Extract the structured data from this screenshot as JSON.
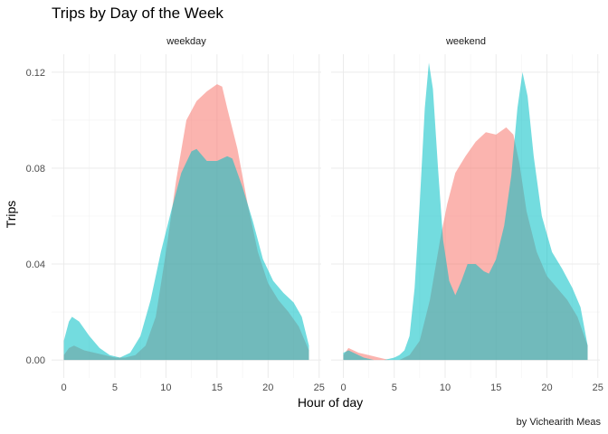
{
  "chart_data": {
    "type": "area",
    "subtype": "density",
    "title": "Trips by Day of the Week",
    "xlabel": "Hour of day",
    "ylabel": "Trips",
    "caption": "by Vichearith Meas",
    "xlim": [
      0,
      25
    ],
    "ylim": [
      0,
      0.12
    ],
    "x_ticks": [
      0,
      5,
      10,
      15,
      20,
      25
    ],
    "y_ticks": [
      0.0,
      0.04,
      0.08,
      0.12
    ],
    "y_tick_labels": [
      "0.00",
      "0.04",
      "0.08",
      "0.12"
    ],
    "grid": true,
    "legend": "none",
    "colors": {
      "series_a": "#f8766d",
      "series_b": "#00bfc4"
    },
    "fill_opacity": 0.55,
    "panels": [
      {
        "label": "weekday",
        "series": [
          {
            "color": "#f8766d",
            "points": [
              [
                0,
                0.002
              ],
              [
                0.5,
                0.005
              ],
              [
                1,
                0.006
              ],
              [
                1.5,
                0.005
              ],
              [
                2,
                0.004
              ],
              [
                3,
                0.003
              ],
              [
                4,
                0.002
              ],
              [
                5,
                0.001
              ],
              [
                6,
                0.001
              ],
              [
                7,
                0.002
              ],
              [
                8,
                0.006
              ],
              [
                9,
                0.018
              ],
              [
                10,
                0.045
              ],
              [
                11,
                0.075
              ],
              [
                12,
                0.1
              ],
              [
                13,
                0.108
              ],
              [
                14,
                0.112
              ],
              [
                15,
                0.115
              ],
              [
                15.5,
                0.114
              ],
              [
                16,
                0.105
              ],
              [
                17,
                0.088
              ],
              [
                18,
                0.065
              ],
              [
                19,
                0.045
              ],
              [
                20,
                0.032
              ],
              [
                21,
                0.025
              ],
              [
                22,
                0.02
              ],
              [
                23,
                0.014
              ],
              [
                24,
                0.004
              ]
            ]
          },
          {
            "color": "#00bfc4",
            "points": [
              [
                0,
                0.008
              ],
              [
                0.5,
                0.016
              ],
              [
                0.8,
                0.018
              ],
              [
                1.5,
                0.016
              ],
              [
                2.5,
                0.01
              ],
              [
                3.5,
                0.005
              ],
              [
                4.5,
                0.002
              ],
              [
                5.5,
                0.001
              ],
              [
                6.5,
                0.003
              ],
              [
                7.5,
                0.01
              ],
              [
                8.5,
                0.025
              ],
              [
                9.5,
                0.045
              ],
              [
                10.5,
                0.062
              ],
              [
                11.5,
                0.078
              ],
              [
                12.5,
                0.087
              ],
              [
                13,
                0.088
              ],
              [
                14,
                0.083
              ],
              [
                15,
                0.083
              ],
              [
                16,
                0.085
              ],
              [
                16.5,
                0.084
              ],
              [
                17.5,
                0.072
              ],
              [
                18.5,
                0.058
              ],
              [
                19.5,
                0.042
              ],
              [
                20.5,
                0.033
              ],
              [
                21.5,
                0.028
              ],
              [
                22.5,
                0.024
              ],
              [
                23.3,
                0.018
              ],
              [
                24,
                0.006
              ]
            ]
          }
        ]
      },
      {
        "label": "weekend",
        "series": [
          {
            "color": "#f8766d",
            "points": [
              [
                0,
                0.002
              ],
              [
                0.5,
                0.005
              ],
              [
                1,
                0.004
              ],
              [
                1.5,
                0.003
              ],
              [
                2.5,
                0.002
              ],
              [
                3.5,
                0.001
              ],
              [
                4.5,
                0
              ],
              [
                5.5,
                0
              ],
              [
                6.5,
                0.002
              ],
              [
                7.5,
                0.008
              ],
              [
                8.5,
                0.025
              ],
              [
                9.5,
                0.05
              ],
              [
                10.2,
                0.065
              ],
              [
                11,
                0.078
              ],
              [
                12,
                0.085
              ],
              [
                13,
                0.091
              ],
              [
                14,
                0.095
              ],
              [
                15,
                0.094
              ],
              [
                16,
                0.097
              ],
              [
                16.7,
                0.094
              ],
              [
                17.3,
                0.082
              ],
              [
                18,
                0.062
              ],
              [
                19,
                0.045
              ],
              [
                20,
                0.035
              ],
              [
                21,
                0.03
              ],
              [
                22,
                0.025
              ],
              [
                23,
                0.018
              ],
              [
                24,
                0.006
              ]
            ]
          },
          {
            "color": "#00bfc4",
            "points": [
              [
                0,
                0.003
              ],
              [
                0.5,
                0.004
              ],
              [
                1,
                0.003
              ],
              [
                2,
                0.001
              ],
              [
                3,
                0
              ],
              [
                4,
                0
              ],
              [
                5,
                0.001
              ],
              [
                5.5,
                0.002
              ],
              [
                6,
                0.004
              ],
              [
                6.5,
                0.01
              ],
              [
                7,
                0.03
              ],
              [
                7.5,
                0.065
              ],
              [
                8,
                0.105
              ],
              [
                8.4,
                0.124
              ],
              [
                8.8,
                0.113
              ],
              [
                9.3,
                0.08
              ],
              [
                9.8,
                0.05
              ],
              [
                10.4,
                0.033
              ],
              [
                11,
                0.027
              ],
              [
                11.6,
                0.033
              ],
              [
                12.2,
                0.04
              ],
              [
                13,
                0.04
              ],
              [
                13.8,
                0.037
              ],
              [
                14.3,
                0.036
              ],
              [
                15,
                0.042
              ],
              [
                15.8,
                0.056
              ],
              [
                16.5,
                0.077
              ],
              [
                17.1,
                0.105
              ],
              [
                17.6,
                0.12
              ],
              [
                18.1,
                0.11
              ],
              [
                18.7,
                0.085
              ],
              [
                19.5,
                0.06
              ],
              [
                20.5,
                0.045
              ],
              [
                21.5,
                0.038
              ],
              [
                22.5,
                0.03
              ],
              [
                23.3,
                0.022
              ],
              [
                24,
                0.006
              ]
            ]
          }
        ]
      }
    ]
  }
}
